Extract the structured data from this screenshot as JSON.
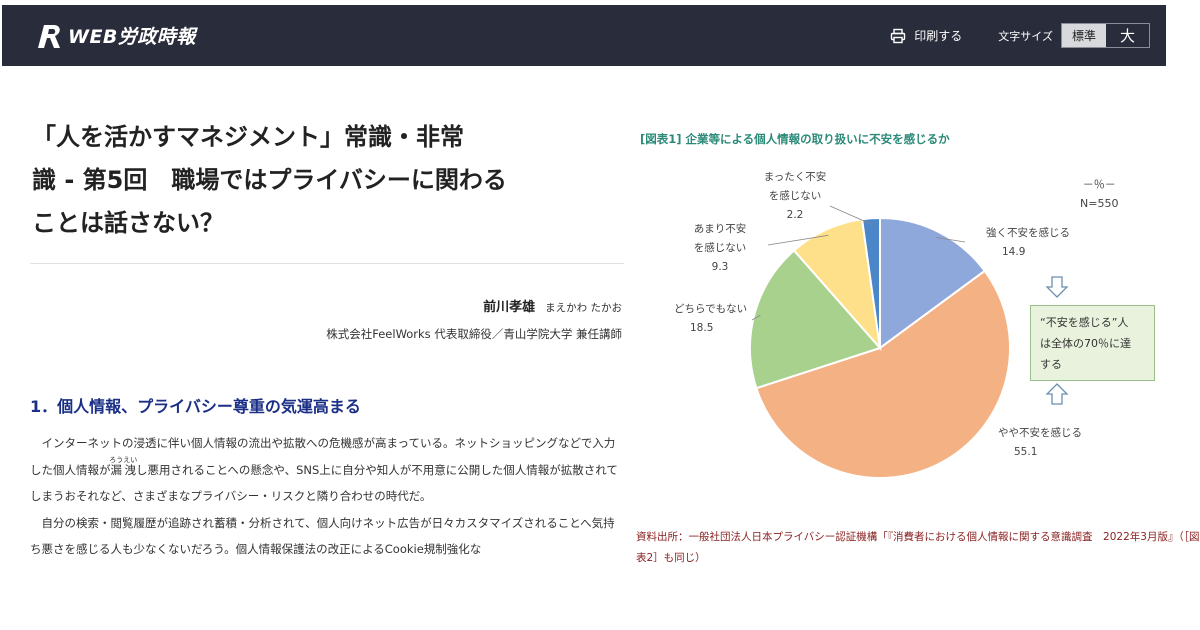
{
  "header": {
    "logo_text": "WEB労政時報",
    "print_label": "印刷する",
    "font_size_label": "文字サイズ",
    "font_size_options": [
      "標準",
      "大"
    ],
    "font_size_selected": "標準"
  },
  "article": {
    "title": "「人を活かすマネジメント」常識・非常識 - 第5回 職場ではプライバシーに関わることは話さない？",
    "title_lines": [
      "「人を活かすマネジメント」常識・非常",
      "識 - 第5回　職場ではプライバシーに関わる",
      "ことは話さない？"
    ],
    "author_name": "前川孝雄",
    "author_kana": "まえかわ たかお",
    "author_affiliation": "株式会社FeelWorks 代表取締役／青山学院大学 兼任講師",
    "section_heading": "1．個人情報、プライバシー尊重の気運高まる",
    "paragraph1_before": "インターネットの浸透に伴い個人情報の流出や拡散への危機感が高まっている。ネットショッピングなどで入力した個人情報が",
    "ruby_base": "漏洩",
    "ruby_text": "ろうえい",
    "paragraph1_after": "し悪用されることへの懸念や、SNS上に自分や知人が不用意に公開した個人情報が拡散されてしまうおそれなど、さまざまなプライバシー・リスクと隣り合わせの時代だ。",
    "paragraph2": "自分の検索・閲覧履歴が追跡され蓄積・分析されて、個人向けネット広告が日々カスタマイズされることへ気持ち悪さを感じる人も少なくないだろう。個人情報保護法の改正によるCookie規制強化な"
  },
  "figure": {
    "caption": "[図表1] 企業等による個人情報の取り扱いに不安を感じるか",
    "unit": "－％－",
    "sample": "N=550",
    "callout_line1": "“不安を感じる”人",
    "callout_line2": "は全体の70％に達",
    "callout_line3": "する",
    "source": "資料出所：一般社団法人日本プライバシー認証機構「『消費者における個人情報に関する意識調査　2022年3月版』（［図表2］も同じ）"
  },
  "chart_data": {
    "type": "pie",
    "title": "[図表1] 企業等による個人情報の取り扱いに不安を感じるか",
    "unit": "%",
    "n": 550,
    "slices": [
      {
        "label_lines": [
          "強く不安を感じる"
        ],
        "value": 14.9,
        "color": "#8fa8dc"
      },
      {
        "label_lines": [
          "やや不安を感じる"
        ],
        "value": 55.1,
        "color": "#f4b183"
      },
      {
        "label_lines": [
          "どちらでもない"
        ],
        "value": 18.5,
        "color": "#a9d18e"
      },
      {
        "label_lines": [
          "あまり不安",
          "を感じない"
        ],
        "value": 9.3,
        "color": "#ffe08a"
      },
      {
        "label_lines": [
          "まったく不安",
          "を感じない"
        ],
        "value": 2.2,
        "color": "#4a86c8"
      }
    ]
  },
  "colors": {
    "header_bg": "#292c3a",
    "heading_blue": "#1b2f86",
    "caption_green": "#2b8a78",
    "source_red": "#8a1f1f"
  }
}
